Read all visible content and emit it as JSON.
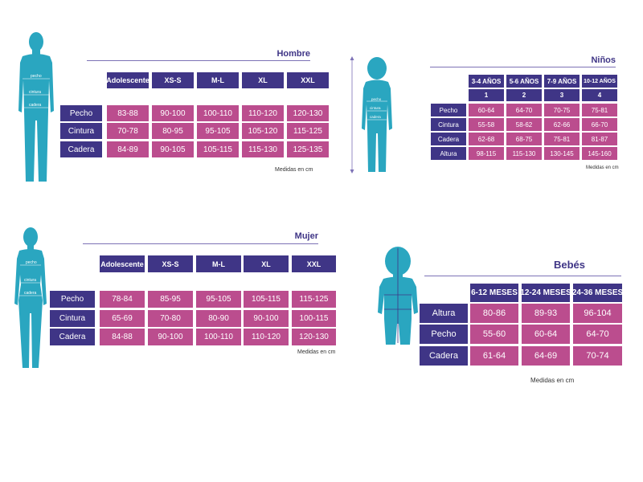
{
  "colors": {
    "header": "#3f3586",
    "value": "#bb4d8e",
    "figure": "#2aa6c0",
    "rule": "#7d72b6"
  },
  "hombre": {
    "title": "Hombre",
    "figure_labels": [
      "pecho",
      "cintura",
      "cadera"
    ],
    "headers": [
      "Adolescente",
      "XS-S",
      "M-L",
      "XL",
      "XXL"
    ],
    "rows": [
      {
        "label": "Pecho",
        "values": [
          "83-88",
          "90-100",
          "100-110",
          "110-120",
          "120-130"
        ]
      },
      {
        "label": "Cintura",
        "values": [
          "70-78",
          "80-95",
          "95-105",
          "105-120",
          "115-125"
        ]
      },
      {
        "label": "Cadera",
        "values": [
          "84-89",
          "90-105",
          "105-115",
          "115-130",
          "125-135"
        ]
      }
    ],
    "note": "Medidas en cm"
  },
  "ninos": {
    "title": "Niños",
    "figure_labels": [
      "pecho",
      "cintura",
      "cadera"
    ],
    "headers": [
      "3-4 AÑOS",
      "5-6 AÑOS",
      "7-9 AÑOS",
      "10-12 AÑOS"
    ],
    "subheaders": [
      "1",
      "2",
      "3",
      "4"
    ],
    "rows": [
      {
        "label": "Pecho",
        "values": [
          "60-64",
          "64-70",
          "70-75",
          "75-81"
        ]
      },
      {
        "label": "Cintura",
        "values": [
          "55-58",
          "58-62",
          "62-66",
          "66-70"
        ]
      },
      {
        "label": "Cadera",
        "values": [
          "62-68",
          "68-75",
          "75-81",
          "81-87"
        ]
      },
      {
        "label": "Altura",
        "values": [
          "98-115",
          "115-130",
          "130-145",
          "145-160"
        ]
      }
    ],
    "note": "Medidas en cm"
  },
  "mujer": {
    "title": "Mujer",
    "figure_labels": [
      "pecho",
      "cintura",
      "cadera"
    ],
    "headers": [
      "Adolescente",
      "XS-S",
      "M-L",
      "XL",
      "XXL"
    ],
    "rows": [
      {
        "label": "Pecho",
        "values": [
          "78-84",
          "85-95",
          "95-105",
          "105-115",
          "115-125"
        ]
      },
      {
        "label": "Cintura",
        "values": [
          "65-69",
          "70-80",
          "80-90",
          "90-100",
          "100-115"
        ]
      },
      {
        "label": "Cadera",
        "values": [
          "84-88",
          "90-100",
          "100-110",
          "110-120",
          "120-130"
        ]
      }
    ],
    "note": "Medidas en cm"
  },
  "bebes": {
    "title": "Bebés",
    "headers": [
      "6-12 MESES",
      "12-24 MESES",
      "24-36 MESES"
    ],
    "rows": [
      {
        "label": "Altura",
        "values": [
          "80-86",
          "89-93",
          "96-104"
        ]
      },
      {
        "label": "Pecho",
        "values": [
          "55-60",
          "60-64",
          "64-70"
        ]
      },
      {
        "label": "Cadera",
        "values": [
          "61-64",
          "64-69",
          "70-74"
        ]
      }
    ],
    "note": "Medidas en cm"
  }
}
